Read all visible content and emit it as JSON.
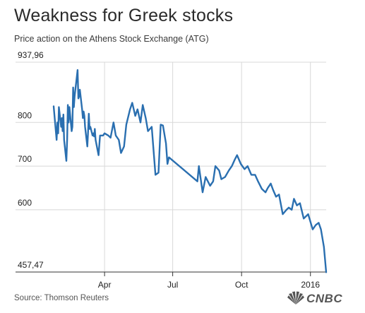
{
  "header": {
    "title": "Weakness for Greek stocks",
    "subtitle": "Price action on the Athens Stock Exchange (ATG)"
  },
  "footer": {
    "source": "Source: Thomson Reuters",
    "logo_text": "CNBC"
  },
  "colors": {
    "line": "#2a6fb0",
    "grid": "#d8d8d8",
    "axis": "#333333",
    "text": "#222222"
  },
  "chart_data": {
    "type": "line",
    "title": "Weakness for Greek stocks",
    "subtitle": "Price action on the Athens Stock Exchange (ATG)",
    "xlabel": "",
    "ylabel": "",
    "ylim": [
      457.47,
      937.96
    ],
    "xlim": [
      "2015-01-23",
      "2016-01-22"
    ],
    "grid": true,
    "legend": "none",
    "y_ticks": [
      {
        "value": 937.96,
        "label": "937,96"
      },
      {
        "value": 800,
        "label": "800"
      },
      {
        "value": 700,
        "label": "700"
      },
      {
        "value": 600,
        "label": "600"
      },
      {
        "value": 457.47,
        "label": "457,47"
      }
    ],
    "x_ticks": [
      {
        "date": "2015-04-01",
        "label": "Apr"
      },
      {
        "date": "2015-07-01",
        "label": "Jul"
      },
      {
        "date": "2015-10-01",
        "label": "Oct"
      },
      {
        "date": "2016-01-01",
        "label": "2016"
      }
    ],
    "series": [
      {
        "name": "ATG",
        "x": [
          "2015-01-23",
          "2015-01-26",
          "2015-01-27",
          "2015-01-28",
          "2015-01-29",
          "2015-01-30",
          "2015-02-02",
          "2015-02-03",
          "2015-02-04",
          "2015-02-05",
          "2015-02-06",
          "2015-02-09",
          "2015-02-10",
          "2015-02-11",
          "2015-02-12",
          "2015-02-13",
          "2015-02-16",
          "2015-02-17",
          "2015-02-18",
          "2015-02-19",
          "2015-02-20",
          "2015-02-24",
          "2015-02-25",
          "2015-02-26",
          "2015-02-27",
          "2015-03-02",
          "2015-03-03",
          "2015-03-04",
          "2015-03-05",
          "2015-03-06",
          "2015-03-09",
          "2015-03-10",
          "2015-03-11",
          "2015-03-12",
          "2015-03-13",
          "2015-03-16",
          "2015-03-17",
          "2015-03-18",
          "2015-03-19",
          "2015-03-20",
          "2015-03-24",
          "2015-03-26",
          "2015-03-30",
          "2015-04-01",
          "2015-04-06",
          "2015-04-09",
          "2015-04-13",
          "2015-04-16",
          "2015-04-20",
          "2015-04-23",
          "2015-04-27",
          "2015-04-30",
          "2015-05-05",
          "2015-05-08",
          "2015-05-12",
          "2015-05-15",
          "2015-05-19",
          "2015-05-22",
          "2015-05-26",
          "2015-05-29",
          "2015-06-03",
          "2015-06-08",
          "2015-06-12",
          "2015-06-15",
          "2015-06-18",
          "2015-06-22",
          "2015-06-24",
          "2015-06-26",
          "2015-08-03",
          "2015-08-05",
          "2015-08-10",
          "2015-08-14",
          "2015-08-20",
          "2015-08-24",
          "2015-08-27",
          "2015-09-01",
          "2015-09-04",
          "2015-09-09",
          "2015-09-14",
          "2015-09-18",
          "2015-09-22",
          "2015-09-25",
          "2015-09-30",
          "2015-10-05",
          "2015-10-09",
          "2015-10-14",
          "2015-10-19",
          "2015-10-23",
          "2015-10-28",
          "2015-11-02",
          "2015-11-05",
          "2015-11-09",
          "2015-11-12",
          "2015-11-16",
          "2015-11-20",
          "2015-11-25",
          "2015-11-30",
          "2015-12-03",
          "2015-12-07",
          "2015-12-10",
          "2015-12-14",
          "2015-12-18",
          "2015-12-23",
          "2015-12-29",
          "2016-01-04",
          "2016-01-08",
          "2016-01-12",
          "2016-01-15",
          "2016-01-19",
          "2016-01-22"
        ],
        "values": [
          837,
          778,
          760,
          800,
          775,
          835,
          790,
          810,
          780,
          818,
          760,
          712,
          760,
          840,
          800,
          835,
          780,
          790,
          880,
          835,
          860,
          920,
          855,
          860,
          875,
          830,
          810,
          825,
          815,
          790,
          745,
          780,
          820,
          785,
          790,
          770,
          775,
          768,
          785,
          760,
          725,
          770,
          770,
          775,
          770,
          765,
          800,
          770,
          760,
          730,
          745,
          795,
          830,
          845,
          815,
          830,
          800,
          840,
          810,
          780,
          790,
          680,
          685,
          795,
          793,
          752,
          705,
          720,
          665,
          700,
          640,
          675,
          655,
          665,
          700,
          690,
          670,
          675,
          690,
          700,
          715,
          725,
          705,
          693,
          700,
          680,
          680,
          665,
          648,
          640,
          650,
          660,
          646,
          630,
          635,
          590,
          600,
          605,
          600,
          625,
          610,
          615,
          580,
          590,
          555,
          565,
          570,
          555,
          515,
          457
        ]
      }
    ]
  }
}
